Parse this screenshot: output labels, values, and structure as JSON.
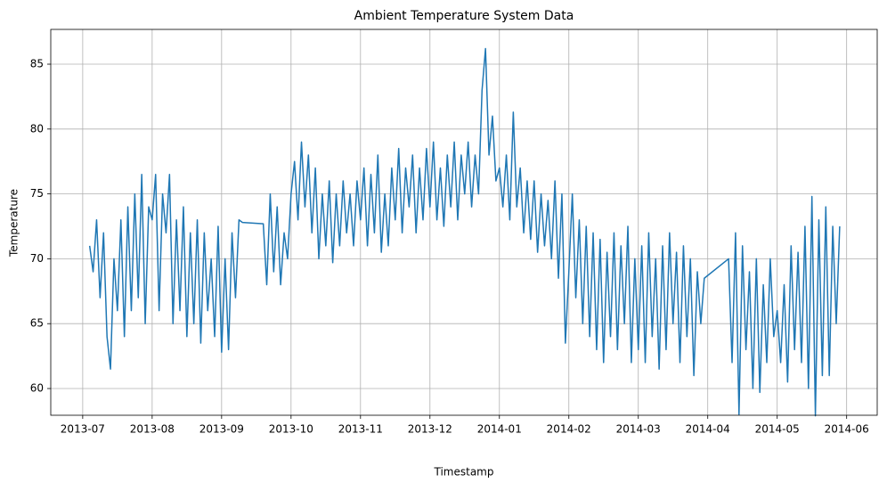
{
  "chart_data": {
    "type": "line",
    "title": "Ambient Temperature System Data",
    "x_label": "Timestamp",
    "y_label": "Temperature",
    "xlim": [
      -0.46,
      11.44
    ],
    "ylim": [
      57.94,
      87.68
    ],
    "xticks": [
      {
        "value": 0,
        "label": "2013-07"
      },
      {
        "value": 1,
        "label": "2013-08"
      },
      {
        "value": 2,
        "label": "2013-09"
      },
      {
        "value": 3,
        "label": "2013-10"
      },
      {
        "value": 4,
        "label": "2013-11"
      },
      {
        "value": 5,
        "label": "2013-12"
      },
      {
        "value": 6,
        "label": "2014-01"
      },
      {
        "value": 7,
        "label": "2014-02"
      },
      {
        "value": 8,
        "label": "2014-03"
      },
      {
        "value": 9,
        "label": "2014-04"
      },
      {
        "value": 10,
        "label": "2014-05"
      },
      {
        "value": 11,
        "label": "2014-06"
      }
    ],
    "yticks": [
      60,
      65,
      70,
      75,
      80,
      85
    ],
    "grid": true,
    "color": "#1f77b4",
    "x": [
      0.1,
      0.15,
      0.2,
      0.25,
      0.3,
      0.35,
      0.4,
      0.45,
      0.5,
      0.55,
      0.6,
      0.65,
      0.7,
      0.75,
      0.8,
      0.85,
      0.9,
      0.95,
      1.0,
      1.05,
      1.1,
      1.15,
      1.2,
      1.25,
      1.3,
      1.35,
      1.4,
      1.45,
      1.5,
      1.55,
      1.6,
      1.65,
      1.7,
      1.75,
      1.8,
      1.85,
      1.9,
      1.95,
      2.0,
      2.05,
      2.1,
      2.15,
      2.2,
      2.25,
      2.3,
      2.6,
      2.65,
      2.7,
      2.75,
      2.8,
      2.85,
      2.9,
      2.95,
      3.0,
      3.05,
      3.1,
      3.15,
      3.2,
      3.25,
      3.3,
      3.35,
      3.4,
      3.45,
      3.5,
      3.55,
      3.6,
      3.65,
      3.7,
      3.75,
      3.8,
      3.85,
      3.9,
      3.95,
      4.0,
      4.05,
      4.1,
      4.15,
      4.2,
      4.25,
      4.3,
      4.35,
      4.4,
      4.45,
      4.5,
      4.55,
      4.6,
      4.65,
      4.7,
      4.75,
      4.8,
      4.85,
      4.9,
      4.95,
      5.0,
      5.05,
      5.1,
      5.15,
      5.2,
      5.25,
      5.3,
      5.35,
      5.4,
      5.45,
      5.5,
      5.55,
      5.6,
      5.65,
      5.7,
      5.75,
      5.8,
      5.85,
      5.9,
      5.95,
      6.0,
      6.05,
      6.1,
      6.15,
      6.2,
      6.25,
      6.3,
      6.35,
      6.4,
      6.45,
      6.5,
      6.55,
      6.6,
      6.65,
      6.7,
      6.75,
      6.8,
      6.85,
      6.9,
      6.95,
      7.0,
      7.05,
      7.1,
      7.15,
      7.2,
      7.25,
      7.3,
      7.35,
      7.4,
      7.45,
      7.5,
      7.55,
      7.6,
      7.65,
      7.7,
      7.75,
      7.8,
      7.85,
      7.9,
      7.95,
      8.0,
      8.05,
      8.1,
      8.15,
      8.2,
      8.25,
      8.3,
      8.35,
      8.4,
      8.45,
      8.5,
      8.55,
      8.6,
      8.65,
      8.7,
      8.75,
      8.8,
      8.85,
      8.9,
      8.95,
      9.3,
      9.35,
      9.4,
      9.45,
      9.5,
      9.55,
      9.6,
      9.65,
      9.7,
      9.75,
      9.8,
      9.85,
      9.9,
      9.95,
      10.0,
      10.05,
      10.1,
      10.15,
      10.2,
      10.25,
      10.3,
      10.35,
      10.4,
      10.45,
      10.5,
      10.55,
      10.6,
      10.65,
      10.7,
      10.75,
      10.8,
      10.85,
      10.9
    ],
    "values": [
      71,
      69,
      73,
      67,
      72,
      64,
      61.5,
      70,
      66,
      73,
      64,
      74,
      66,
      75,
      67,
      76.5,
      65,
      74,
      73,
      76.5,
      66,
      75,
      72,
      76.5,
      65,
      73,
      66,
      74,
      64,
      72,
      65,
      73,
      63.5,
      72,
      66,
      70,
      64,
      72.5,
      62.8,
      70,
      63,
      72,
      67,
      73,
      72.8,
      72.7,
      68,
      75,
      69,
      74,
      68,
      72,
      70,
      75,
      77.5,
      73,
      79,
      74,
      78,
      72,
      77,
      70,
      75,
      71,
      76,
      69.7,
      75,
      71,
      76,
      72,
      75,
      71,
      76,
      73,
      77,
      71,
      76.5,
      72,
      78,
      70.5,
      75,
      71,
      77,
      73,
      78.5,
      72,
      77,
      74,
      78,
      72,
      77,
      73,
      78.5,
      74,
      79,
      73,
      77,
      72.5,
      78,
      74,
      79,
      73,
      78,
      75,
      79,
      74,
      78,
      75,
      83,
      86.2,
      78,
      81,
      76,
      77,
      74,
      78,
      73,
      81.3,
      74,
      77,
      72,
      76,
      71.5,
      76,
      70.5,
      75,
      71,
      74.5,
      70,
      76,
      68.5,
      75,
      63.5,
      69,
      75,
      67,
      73,
      65,
      72.5,
      64,
      72,
      63,
      71.5,
      62,
      70.5,
      64,
      72,
      63,
      71,
      65,
      72.5,
      62,
      70,
      63,
      71,
      62,
      72,
      64,
      70,
      61.5,
      71,
      63,
      72,
      65,
      70.5,
      62,
      71,
      64,
      70,
      61,
      69,
      65,
      68.5,
      70,
      62,
      72,
      58,
      71,
      63,
      69,
      60,
      70,
      59.7,
      68,
      62,
      70,
      64,
      66,
      62,
      68,
      60.5,
      71,
      63,
      70.5,
      62,
      72.5,
      60,
      74.8,
      57.9,
      73,
      61,
      74,
      61,
      72.5,
      65,
      72.5
    ]
  }
}
